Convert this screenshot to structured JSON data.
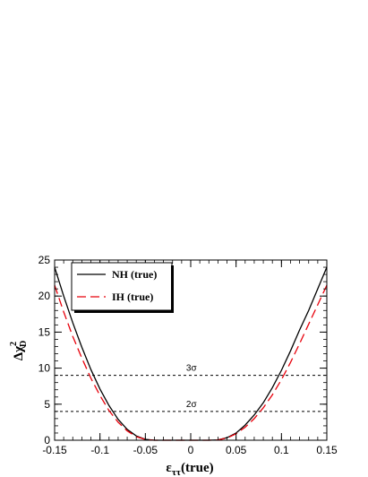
{
  "chart_data": {
    "type": "line",
    "xlim": [
      -0.15,
      0.15
    ],
    "ylim": [
      0,
      25
    ],
    "xticks": [
      "-0.15",
      "-0.1",
      "-0.05",
      "0",
      "0.05",
      "0.1",
      "0.15"
    ],
    "yticks": [
      "0",
      "5",
      "10",
      "15",
      "20",
      "25"
    ],
    "xlabel": {
      "main": "ε",
      "sub": "ττ",
      "suffix": "(true)"
    },
    "ylabel": {
      "main": "Δχ",
      "sup": "2",
      "sub": "D"
    },
    "legend_position": "top-left",
    "series": [
      {
        "name": "NH (true)",
        "color": "#000000",
        "dash": "solid",
        "x": [
          -0.15,
          -0.14,
          -0.13,
          -0.12,
          -0.11,
          -0.1,
          -0.09,
          -0.08,
          -0.07,
          -0.06,
          -0.05,
          -0.04,
          -0.03,
          -0.02,
          -0.01,
          0,
          0.01,
          0.02,
          0.03,
          0.04,
          0.05,
          0.06,
          0.07,
          0.08,
          0.09,
          0.1,
          0.11,
          0.12,
          0.13,
          0.14,
          0.15
        ],
        "y": [
          24.0,
          20.0,
          16.3,
          12.9,
          9.8,
          7.1,
          4.8,
          2.9,
          1.5,
          0.6,
          0.12,
          0.0,
          0.0,
          0.0,
          0.0,
          0.0,
          0.0,
          0.0,
          0.05,
          0.35,
          1.0,
          2.1,
          3.5,
          5.2,
          7.3,
          9.7,
          12.4,
          15.3,
          18.0,
          21.0,
          24.0
        ]
      },
      {
        "name": "IH (true)",
        "color": "#e8000b",
        "dash": "dashed",
        "x": [
          -0.15,
          -0.14,
          -0.13,
          -0.12,
          -0.11,
          -0.1,
          -0.09,
          -0.08,
          -0.07,
          -0.06,
          -0.05,
          -0.04,
          -0.03,
          -0.02,
          -0.01,
          0,
          0.01,
          0.02,
          0.03,
          0.04,
          0.05,
          0.06,
          0.07,
          0.08,
          0.09,
          0.1,
          0.11,
          0.12,
          0.13,
          0.14,
          0.15
        ],
        "y": [
          21.5,
          17.8,
          14.4,
          11.4,
          8.6,
          6.2,
          4.1,
          2.5,
          1.3,
          0.5,
          0.1,
          0.0,
          0.0,
          0.0,
          0.0,
          0.0,
          0.0,
          0.0,
          0.05,
          0.3,
          0.9,
          1.8,
          3.0,
          4.5,
          6.3,
          8.4,
          10.8,
          13.4,
          16.1,
          18.8,
          21.5
        ]
      }
    ],
    "reference_lines": [
      {
        "y": 9,
        "label": "3σ",
        "label_x": -0.005
      },
      {
        "y": 4,
        "label": "2σ",
        "label_x": -0.005
      }
    ]
  }
}
